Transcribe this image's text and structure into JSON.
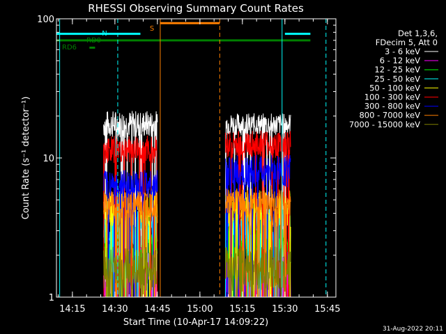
{
  "chart_data": {
    "type": "line",
    "title": "RHESSI Observing Summary Count Rates",
    "xlabel": "Start Time (10-Apr-17 14:09:22)",
    "ylabel": "Count Rate (s⁻¹ detector⁻¹)",
    "y_scale": "log",
    "ylim": [
      1,
      100
    ],
    "x_range_min": [
      14.1561,
      15.8
    ],
    "x_ticks": [
      "14:15",
      "14:30",
      "14:45",
      "15:00",
      "15:15",
      "15:30",
      "15:45"
    ],
    "y_ticks": [
      "1",
      "10",
      "100"
    ],
    "legend_position": "top-right",
    "legend_header": [
      "Det 1,3,6,",
      "FDecim 5, Att 0"
    ],
    "series": [
      {
        "name": "3 - 6 keV",
        "color": "#ffffff",
        "segments": [
          {
            "t0": "14:26",
            "t1": "14:45",
            "level": 17.5,
            "spread": 0.1
          },
          {
            "t0": "15:09",
            "t1": "15:32",
            "level": 17.5,
            "spread": 0.08
          }
        ]
      },
      {
        "name": "6 - 12 keV",
        "color": "#ff00ff",
        "segments": [
          {
            "t0": "14:26",
            "t1": "14:45",
            "level": 1.4,
            "spread": 0.22
          },
          {
            "t0": "15:09",
            "t1": "15:32",
            "level": 1.4,
            "spread": 0.22
          }
        ]
      },
      {
        "name": "12 - 25 keV",
        "color": "#00ff00",
        "segments": [
          {
            "t0": "14:26",
            "t1": "14:45",
            "level": 2.4,
            "spread": 0.14
          },
          {
            "t0": "15:09",
            "t1": "15:32",
            "level": 2.4,
            "spread": 0.14
          }
        ]
      },
      {
        "name": "25 - 50 keV",
        "color": "#00ffff",
        "segments": [
          {
            "t0": "14:26",
            "t1": "14:45",
            "level": 3.2,
            "spread": 0.14
          },
          {
            "t0": "15:09",
            "t1": "15:32",
            "level": 3.2,
            "spread": 0.14
          }
        ]
      },
      {
        "name": "50 - 100 keV",
        "color": "#ffff00",
        "segments": [
          {
            "t0": "14:26",
            "t1": "14:45",
            "level": 4.4,
            "spread": 0.14
          },
          {
            "t0": "15:09",
            "t1": "15:32",
            "level": 4.4,
            "spread": 0.14
          }
        ]
      },
      {
        "name": "100 - 300 keV",
        "color": "#ff0000",
        "segments": [
          {
            "t0": "14:26",
            "t1": "14:45",
            "level": 11.5,
            "spread": 0.1
          },
          {
            "t0": "15:09",
            "t1": "15:32",
            "level": 12.5,
            "spread": 0.1
          }
        ]
      },
      {
        "name": "300 - 800 keV",
        "color": "#0000ff",
        "segments": [
          {
            "t0": "14:26",
            "t1": "14:45",
            "level": 6.5,
            "spread": 0.1
          },
          {
            "t0": "15:09",
            "t1": "15:32",
            "level": 8.0,
            "spread": 0.12
          }
        ]
      },
      {
        "name": "800 - 7000 keV",
        "color": "#ff8000",
        "segments": [
          {
            "t0": "14:26",
            "t1": "14:45",
            "level": 4.6,
            "spread": 0.1
          },
          {
            "t0": "15:09",
            "t1": "15:32",
            "level": 4.8,
            "spread": 0.1
          }
        ]
      },
      {
        "name": "7000 - 15000 keV",
        "color": "#808000",
        "segments": [
          {
            "t0": "14:26",
            "t1": "14:45",
            "level": 1.6,
            "spread": 0.16
          },
          {
            "t0": "15:09",
            "t1": "15:32",
            "level": 1.6,
            "spread": 0.16
          }
        ]
      }
    ],
    "flags": [
      {
        "label": "N",
        "color": "#00ffff",
        "spans": [
          [
            "14:09",
            "14:39"
          ],
          [
            "15:30",
            "15:39"
          ]
        ],
        "level": 78
      },
      {
        "label": "S",
        "color": "#ff8000",
        "spans": [
          [
            "14:46",
            "15:07"
          ]
        ],
        "level": 93
      },
      {
        "label": "RD0",
        "color": "#008000",
        "spans": [
          [
            "14:09",
            "15:39"
          ]
        ],
        "level": 70
      },
      {
        "label": "RD6",
        "color": "#008000",
        "spans": [
          [
            "14:21",
            "14:23"
          ]
        ],
        "level": 62
      }
    ],
    "markers": [
      {
        "time": "14:10.5",
        "color": "#00ffff",
        "style": "solid"
      },
      {
        "time": "14:31",
        "color": "#00ffff",
        "style": "dashed"
      },
      {
        "time": "15:29",
        "color": "#00ffff",
        "style": "solid"
      },
      {
        "time": "15:44.5",
        "color": "#00ffff",
        "style": "dashed"
      },
      {
        "time": "14:46",
        "color": "#ff8000",
        "style": "solid"
      },
      {
        "time": "15:07",
        "color": "#ff8000",
        "style": "dashed"
      }
    ],
    "date_stamp": "31-Aug-2022 20:11"
  }
}
